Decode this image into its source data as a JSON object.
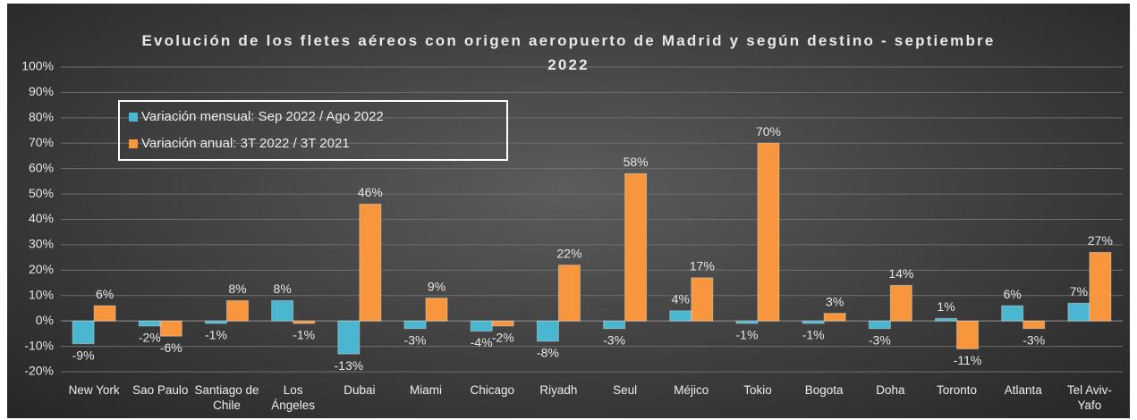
{
  "chart_data": {
    "type": "bar",
    "title": "Evolución de los fletes aéreos con origen aeropuerto de Madrid y según destino - septiembre 2022",
    "categories": [
      "New York",
      "Sao Paulo",
      "Santiago de Chile",
      "Los Ángeles",
      "Dubai",
      "Miami",
      "Chicago",
      "Riyadh",
      "Seul",
      "Méjico",
      "Tokio",
      "Bogota",
      "Doha",
      "Toronto",
      "Atlanta",
      "Tel Aviv-Yafo"
    ],
    "series": [
      {
        "name": "Variación mensual: Sep 2022 / Ago 2022",
        "color": "#4bb6cf",
        "values": [
          -9,
          -2,
          -1,
          8,
          -13,
          -3,
          -4,
          -8,
          -3,
          4,
          -1,
          -1,
          -3,
          1,
          6,
          7
        ],
        "value_labels": [
          "-9%",
          "-2%",
          "-1%",
          "8%",
          "-13%",
          "-3%",
          "-4%",
          "-8%",
          "-3%",
          "4%",
          "-1%",
          "-1%",
          "-3%",
          "1%",
          "6%",
          "7%"
        ]
      },
      {
        "name": "Variación anual: 3T 2022 / 3T 2021",
        "color": "#f7963c",
        "values": [
          6,
          -6,
          8,
          -1,
          46,
          9,
          -2,
          22,
          58,
          17,
          70,
          3,
          14,
          -11,
          -3,
          27
        ],
        "value_labels": [
          "6%",
          "-6%",
          "8%",
          "-1%",
          "46%",
          "9%",
          "-2%",
          "22%",
          "58%",
          "17%",
          "70%",
          "3%",
          "14%",
          "-11%",
          "-3%",
          "27%"
        ]
      }
    ],
    "ylim": [
      -20,
      100
    ],
    "yticks": [
      {
        "value": -20,
        "label": "-20%"
      },
      {
        "value": -10,
        "label": "-10%"
      },
      {
        "value": 0,
        "label": "0%"
      },
      {
        "value": 10,
        "label": "10%"
      },
      {
        "value": 20,
        "label": "20%"
      },
      {
        "value": 30,
        "label": "30%"
      },
      {
        "value": 40,
        "label": "40%"
      },
      {
        "value": 50,
        "label": "50%"
      },
      {
        "value": 60,
        "label": "60%"
      },
      {
        "value": 70,
        "label": "70%"
      },
      {
        "value": 80,
        "label": "80%"
      },
      {
        "value": 90,
        "label": "90%"
      },
      {
        "value": 100,
        "label": "100%"
      }
    ],
    "grid": true,
    "legend": "upper left"
  }
}
